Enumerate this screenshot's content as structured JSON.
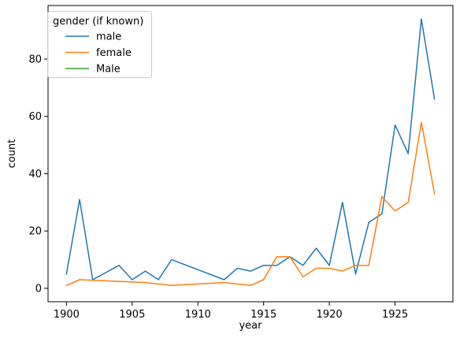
{
  "chart_data": {
    "type": "line",
    "xlabel": "year",
    "ylabel": "count",
    "xlim": [
      1898.6,
      1929.4
    ],
    "ylim": [
      -4.7,
      98.7
    ],
    "xticks": [
      1900,
      1905,
      1910,
      1915,
      1920,
      1925
    ],
    "yticks": [
      0,
      20,
      40,
      60,
      80
    ],
    "grid": false,
    "legend": {
      "title": "gender (if known)",
      "placement": "top-left"
    },
    "series": [
      {
        "name": "male",
        "color": "#1f77b4",
        "x": [
          1900,
          1901,
          1902,
          1904,
          1905,
          1906,
          1907,
          1908,
          1912,
          1913,
          1914,
          1915,
          1916,
          1917,
          1918,
          1919,
          1920,
          1921,
          1922,
          1923,
          1924,
          1925,
          1926,
          1927,
          1928
        ],
        "y": [
          5,
          31,
          3,
          8,
          3,
          6,
          3,
          10,
          3,
          7,
          6,
          8,
          8,
          11,
          8,
          14,
          8,
          30,
          5,
          23,
          26,
          57,
          47,
          94,
          66
        ]
      },
      {
        "name": "female",
        "color": "#ff7f0e",
        "x": [
          1900,
          1901,
          1906,
          1908,
          1912,
          1914,
          1915,
          1916,
          1917,
          1918,
          1919,
          1920,
          1921,
          1922,
          1923,
          1924,
          1925,
          1926,
          1927,
          1928
        ],
        "y": [
          1,
          3,
          2,
          1,
          2,
          1,
          3,
          11,
          11,
          4,
          7,
          7,
          6,
          8,
          8,
          32,
          27,
          30,
          58,
          33
        ]
      },
      {
        "name": "Male",
        "color": "#2ca02c",
        "x": [],
        "y": []
      }
    ]
  }
}
